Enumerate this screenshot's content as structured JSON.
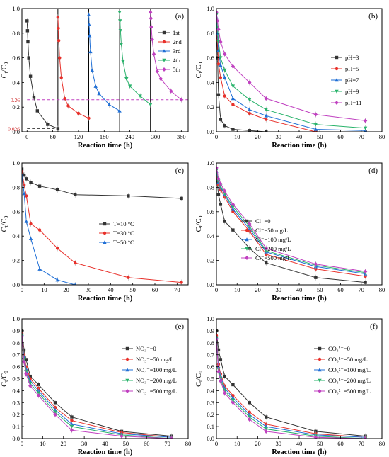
{
  "chart_data": [
    {
      "id": "a",
      "type": "line",
      "panel_label": "(a)",
      "xlabel": "Reaction time (h)",
      "ylabel_main": "C",
      "ylabel_sub1": "t",
      "ylabel_mid": "/C",
      "ylabel_sub2": "0",
      "xlim": [
        -12,
        376
      ],
      "ylim": [
        0,
        1.0
      ],
      "xticks": [
        0,
        60,
        120,
        180,
        240,
        300,
        360
      ],
      "yticks": [
        0.0,
        0.2,
        0.4,
        0.6,
        0.8,
        1.0
      ],
      "ytick_decimals": 1,
      "vlines": [
        72,
        144,
        216,
        288
      ],
      "hlines": [
        {
          "y": 0.26,
          "color": "#c040c0",
          "dash": "4,3",
          "from": 0,
          "to": 376
        },
        {
          "y": 0.026,
          "color": "#333333",
          "dash": "4,3",
          "from": 0,
          "to": 72
        }
      ],
      "annotations": [
        {
          "text": "0.26",
          "x": -12,
          "y": 0.26,
          "color": "#cc2222"
        },
        {
          "text": "0.026",
          "x": -12,
          "y": 0.026,
          "color": "#cc2222"
        }
      ],
      "legend_position": "right",
      "series": [
        {
          "name": "1st",
          "color": "#333333",
          "marker": "square",
          "x": [
            0,
            1,
            2,
            4,
            8,
            16,
            24,
            48,
            72
          ],
          "y": [
            0.9,
            0.82,
            0.73,
            0.6,
            0.45,
            0.28,
            0.17,
            0.06,
            0.026
          ]
        },
        {
          "name": "2nd",
          "color": "#e8302a",
          "marker": "circle",
          "x": [
            72,
            73,
            74,
            76,
            80,
            88,
            96,
            120,
            144
          ],
          "y": [
            0.93,
            0.84,
            0.74,
            0.6,
            0.44,
            0.27,
            0.21,
            0.15,
            0.11
          ]
        },
        {
          "name": "3rd",
          "color": "#1f6fd6",
          "marker": "triangle",
          "x": [
            144,
            145,
            146,
            148,
            152,
            160,
            168,
            192,
            216
          ],
          "y": [
            0.95,
            0.87,
            0.78,
            0.65,
            0.5,
            0.37,
            0.31,
            0.22,
            0.17
          ]
        },
        {
          "name": "4th",
          "color": "#29b36b",
          "marker": "triangle-down",
          "x": [
            216,
            217,
            218,
            220,
            224,
            232,
            240,
            264,
            288
          ],
          "y": [
            0.97,
            0.9,
            0.82,
            0.71,
            0.57,
            0.43,
            0.37,
            0.29,
            0.22
          ]
        },
        {
          "name": "5th",
          "color": "#c040c0",
          "marker": "diamond",
          "x": [
            288,
            289,
            290,
            292,
            296,
            304,
            312,
            336,
            360
          ],
          "y": [
            0.97,
            0.92,
            0.85,
            0.75,
            0.63,
            0.49,
            0.43,
            0.33,
            0.26
          ]
        }
      ]
    },
    {
      "id": "b",
      "type": "line",
      "panel_label": "(b)",
      "xlabel": "Reaction time (h)",
      "ylabel_main": "C",
      "ylabel_sub1": "t",
      "ylabel_mid": "/C",
      "ylabel_sub2": "0",
      "xlim": [
        0,
        80
      ],
      "ylim": [
        0,
        1.0
      ],
      "xticks": [
        0,
        10,
        20,
        30,
        40,
        50,
        60,
        70,
        80
      ],
      "yticks": [
        0.0,
        0.2,
        0.4,
        0.6,
        0.8,
        1.0
      ],
      "ytick_decimals": 1,
      "legend_position": "right",
      "series": [
        {
          "name": "pH=3",
          "color": "#333333",
          "marker": "square",
          "x": [
            0,
            0.5,
            1,
            2,
            4,
            8,
            16,
            24,
            48,
            72
          ],
          "y": [
            0.9,
            0.6,
            0.3,
            0.1,
            0.05,
            0.02,
            0.01,
            0.0,
            0.0,
            0.0
          ]
        },
        {
          "name": "pH=5",
          "color": "#e8302a",
          "marker": "circle",
          "x": [
            0,
            0.5,
            1,
            2,
            4,
            8,
            16,
            24,
            48,
            72
          ],
          "y": [
            0.9,
            0.74,
            0.55,
            0.44,
            0.29,
            0.22,
            0.15,
            0.1,
            0.0,
            0.0
          ]
        },
        {
          "name": "pH=7",
          "color": "#1f6fd6",
          "marker": "triangle",
          "x": [
            0,
            0.5,
            1,
            2,
            4,
            8,
            16,
            24,
            48,
            72
          ],
          "y": [
            0.93,
            0.8,
            0.66,
            0.54,
            0.44,
            0.27,
            0.18,
            0.13,
            0.02,
            0.01
          ]
        },
        {
          "name": "pH=9",
          "color": "#29b36b",
          "marker": "triangle-down",
          "x": [
            0,
            0.5,
            1,
            2,
            4,
            8,
            16,
            24,
            48,
            72
          ],
          "y": [
            0.95,
            0.85,
            0.73,
            0.6,
            0.5,
            0.37,
            0.26,
            0.18,
            0.06,
            0.03
          ]
        },
        {
          "name": "pH=11",
          "color": "#c040c0",
          "marker": "diamond",
          "x": [
            0,
            0.5,
            1,
            2,
            4,
            8,
            16,
            24,
            48,
            72
          ],
          "y": [
            0.97,
            0.9,
            0.83,
            0.73,
            0.63,
            0.53,
            0.4,
            0.27,
            0.14,
            0.09
          ]
        }
      ]
    },
    {
      "id": "c",
      "type": "line",
      "panel_label": "(c)",
      "xlabel": "Reaction time (h)",
      "ylabel_main": "C",
      "ylabel_sub1": "t",
      "ylabel_mid": "/C",
      "ylabel_sub2": "0",
      "xlim": [
        0,
        75
      ],
      "ylim": [
        0,
        1.0
      ],
      "xticks": [
        0,
        10,
        20,
        30,
        40,
        50,
        60,
        70
      ],
      "yticks": [
        0.0,
        0.2,
        0.4,
        0.6,
        0.8,
        1.0
      ],
      "ytick_decimals": 1,
      "legend_position": "center",
      "series": [
        {
          "name": "T=10 °C",
          "color": "#333333",
          "marker": "square",
          "x": [
            0,
            1,
            2,
            4,
            8,
            16,
            24,
            48,
            72
          ],
          "y": [
            0.95,
            0.9,
            0.87,
            0.84,
            0.81,
            0.78,
            0.74,
            0.73,
            0.71
          ]
        },
        {
          "name": "T=30 °C",
          "color": "#e8302a",
          "marker": "circle",
          "x": [
            0,
            1,
            2,
            4,
            8,
            16,
            24,
            48,
            72
          ],
          "y": [
            0.93,
            0.82,
            0.73,
            0.5,
            0.45,
            0.3,
            0.18,
            0.06,
            0.02
          ]
        },
        {
          "name": "T=50 °C",
          "color": "#1f6fd6",
          "marker": "triangle",
          "x": [
            0,
            1,
            2,
            4,
            8,
            16,
            24
          ],
          "y": [
            0.9,
            0.75,
            0.52,
            0.38,
            0.13,
            0.04,
            0.0
          ]
        }
      ]
    },
    {
      "id": "d",
      "type": "line",
      "panel_label": "(d)",
      "xlabel": "Reaction time (h)",
      "ylabel_main": "C",
      "ylabel_sub1": "t",
      "ylabel_mid": "/C",
      "ylabel_sub2": "0",
      "xlim": [
        0,
        80
      ],
      "ylim": [
        0,
        1.0
      ],
      "xticks": [
        0,
        10,
        20,
        30,
        40,
        50,
        60,
        70,
        80
      ],
      "yticks": [
        0.0,
        0.2,
        0.4,
        0.6,
        0.8,
        1.0
      ],
      "ytick_decimals": 1,
      "legend_position": "center-left",
      "series": [
        {
          "name": "Cl⁻=0",
          "color": "#333333",
          "marker": "square",
          "x": [
            0,
            1,
            2,
            4,
            8,
            16,
            24,
            48,
            72
          ],
          "y": [
            0.9,
            0.74,
            0.66,
            0.52,
            0.45,
            0.3,
            0.18,
            0.06,
            0.02
          ]
        },
        {
          "name": "Cl⁻=50 mg/L",
          "color": "#e8302a",
          "marker": "circle",
          "x": [
            0,
            1,
            2,
            4,
            8,
            16,
            24,
            48,
            72
          ],
          "y": [
            0.92,
            0.82,
            0.78,
            0.72,
            0.6,
            0.44,
            0.25,
            0.13,
            0.07
          ]
        },
        {
          "name": "Cl⁻=100 mg/L",
          "color": "#1f6fd6",
          "marker": "triangle",
          "x": [
            0,
            1,
            2,
            4,
            8,
            16,
            24,
            48,
            72
          ],
          "y": [
            0.93,
            0.84,
            0.8,
            0.74,
            0.62,
            0.46,
            0.27,
            0.15,
            0.09
          ]
        },
        {
          "name": "Cl⁻=200 mg/L",
          "color": "#29b36b",
          "marker": "triangle-down",
          "x": [
            0,
            1,
            2,
            4,
            8,
            16,
            24,
            48,
            72
          ],
          "y": [
            0.94,
            0.85,
            0.81,
            0.75,
            0.64,
            0.48,
            0.28,
            0.16,
            0.1
          ]
        },
        {
          "name": "Cl⁻=500 mg/L",
          "color": "#c040c0",
          "marker": "diamond",
          "x": [
            0,
            1,
            2,
            4,
            8,
            16,
            24,
            48,
            72
          ],
          "y": [
            0.96,
            0.87,
            0.83,
            0.77,
            0.66,
            0.5,
            0.3,
            0.17,
            0.11
          ]
        }
      ]
    },
    {
      "id": "e",
      "type": "line",
      "panel_label": "(e)",
      "xlabel": "Reaction time (h)",
      "ylabel_main": "C",
      "ylabel_sub1": "t",
      "ylabel_mid": "/C",
      "ylabel_sub2": "0",
      "xlim": [
        0,
        80
      ],
      "ylim": [
        0,
        1.0
      ],
      "xticks": [
        0,
        10,
        20,
        30,
        40,
        50,
        60,
        70,
        80
      ],
      "yticks": [
        0.0,
        0.1,
        0.2,
        0.3,
        0.4,
        0.5,
        0.6,
        0.7,
        0.8,
        0.9,
        1.0
      ],
      "ytick_decimals": 1,
      "legend_position": "center-right",
      "series": [
        {
          "name": "NO₃⁻=0",
          "color": "#333333",
          "marker": "square",
          "x": [
            0,
            1,
            2,
            4,
            8,
            16,
            24,
            48,
            72
          ],
          "y": [
            0.9,
            0.74,
            0.66,
            0.52,
            0.45,
            0.3,
            0.18,
            0.06,
            0.02
          ]
        },
        {
          "name": "NO₃⁻=50 mg/L",
          "color": "#e8302a",
          "marker": "circle",
          "x": [
            0,
            1,
            2,
            4,
            8,
            16,
            24,
            48,
            72
          ],
          "y": [
            0.88,
            0.7,
            0.6,
            0.5,
            0.42,
            0.26,
            0.15,
            0.05,
            0.01
          ]
        },
        {
          "name": "NO₃⁻=100 mg/L",
          "color": "#1f6fd6",
          "marker": "triangle",
          "x": [
            0,
            1,
            2,
            4,
            8,
            16,
            24,
            48,
            72
          ],
          "y": [
            0.87,
            0.68,
            0.58,
            0.48,
            0.4,
            0.24,
            0.12,
            0.04,
            0.01
          ]
        },
        {
          "name": "NO₃⁻=200 mg/L",
          "color": "#29b36b",
          "marker": "triangle-down",
          "x": [
            0,
            1,
            2,
            4,
            8,
            16,
            24,
            48,
            72
          ],
          "y": [
            0.86,
            0.66,
            0.56,
            0.46,
            0.38,
            0.22,
            0.1,
            0.03,
            0.0
          ]
        },
        {
          "name": "NO₃⁻=500 mg/L",
          "color": "#c040c0",
          "marker": "diamond",
          "x": [
            0,
            1,
            2,
            4,
            8,
            16,
            24,
            48,
            72
          ],
          "y": [
            0.85,
            0.64,
            0.54,
            0.44,
            0.36,
            0.2,
            0.07,
            0.02,
            0.0
          ]
        }
      ]
    },
    {
      "id": "f",
      "type": "line",
      "panel_label": "(f)",
      "xlabel": "Reaction time (h)",
      "ylabel_main": "C",
      "ylabel_sub1": "t",
      "ylabel_mid": "/C",
      "ylabel_sub2": "0",
      "xlim": [
        0,
        80
      ],
      "ylim": [
        0,
        1.0
      ],
      "xticks": [
        0,
        10,
        20,
        30,
        40,
        50,
        60,
        70,
        80
      ],
      "yticks": [
        0.0,
        0.1,
        0.2,
        0.3,
        0.4,
        0.5,
        0.6,
        0.7,
        0.8,
        0.9,
        1.0
      ],
      "ytick_decimals": 1,
      "legend_position": "center-right",
      "series": [
        {
          "name": "CO₃²⁻=0",
          "color": "#333333",
          "marker": "square",
          "x": [
            0,
            1,
            2,
            4,
            8,
            16,
            24,
            48,
            72
          ],
          "y": [
            0.9,
            0.74,
            0.66,
            0.52,
            0.45,
            0.3,
            0.18,
            0.06,
            0.02
          ]
        },
        {
          "name": "CO₃²⁻=50 mg/L",
          "color": "#e8302a",
          "marker": "circle",
          "x": [
            0,
            1,
            2,
            4,
            8,
            16,
            24,
            48,
            72
          ],
          "y": [
            0.86,
            0.62,
            0.54,
            0.44,
            0.36,
            0.22,
            0.12,
            0.04,
            0.01
          ]
        },
        {
          "name": "CO₃²⁻=100 mg/L",
          "color": "#1f6fd6",
          "marker": "triangle",
          "x": [
            0,
            1,
            2,
            4,
            8,
            16,
            24,
            48,
            72
          ],
          "y": [
            0.85,
            0.6,
            0.52,
            0.42,
            0.34,
            0.2,
            0.1,
            0.03,
            0.01
          ]
        },
        {
          "name": "CO₃²⁻=200 mg/L",
          "color": "#29b36b",
          "marker": "triangle-down",
          "x": [
            0,
            1,
            2,
            4,
            8,
            16,
            24,
            48,
            72
          ],
          "y": [
            0.84,
            0.58,
            0.5,
            0.4,
            0.32,
            0.18,
            0.08,
            0.02,
            0.0
          ]
        },
        {
          "name": "CO₃²⁻=500 mg/L",
          "color": "#c040c0",
          "marker": "diamond",
          "x": [
            0,
            1,
            2,
            4,
            8,
            16,
            24,
            48,
            72
          ],
          "y": [
            0.83,
            0.56,
            0.48,
            0.38,
            0.3,
            0.16,
            0.06,
            0.01,
            0.0
          ]
        }
      ]
    }
  ]
}
